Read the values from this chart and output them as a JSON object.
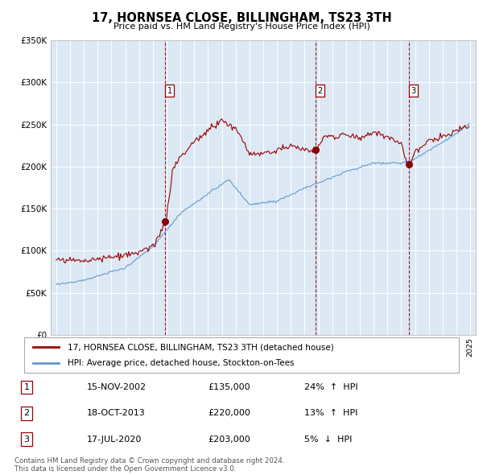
{
  "title": "17, HORNSEA CLOSE, BILLINGHAM, TS23 3TH",
  "subtitle": "Price paid vs. HM Land Registry's House Price Index (HPI)",
  "red_line_label": "17, HORNSEA CLOSE, BILLINGHAM, TS23 3TH (detached house)",
  "blue_line_label": "HPI: Average price, detached house, Stockton-on-Tees",
  "ylim": [
    0,
    350000
  ],
  "yticks": [
    0,
    50000,
    100000,
    150000,
    200000,
    250000,
    300000,
    350000
  ],
  "ytick_labels": [
    "£0",
    "£50K",
    "£100K",
    "£150K",
    "£200K",
    "£250K",
    "£300K",
    "£350K"
  ],
  "sales": [
    {
      "num": 1,
      "date": "15-NOV-2002",
      "date_float": 2002.88,
      "price": 135000,
      "pct": "24%",
      "dir": "↑"
    },
    {
      "num": 2,
      "date": "18-OCT-2013",
      "date_float": 2013.8,
      "price": 220000,
      "pct": "13%",
      "dir": "↑"
    },
    {
      "num": 3,
      "date": "17-JUL-2020",
      "date_float": 2020.54,
      "price": 203000,
      "pct": "5%",
      "dir": "↓"
    }
  ],
  "plot_bg_color": "#dce9f5",
  "grid_color": "#ffffff",
  "red_color": "#990000",
  "blue_color": "#6699cc",
  "footer": "Contains HM Land Registry data © Crown copyright and database right 2024.\nThis data is licensed under the Open Government Licence v3.0."
}
